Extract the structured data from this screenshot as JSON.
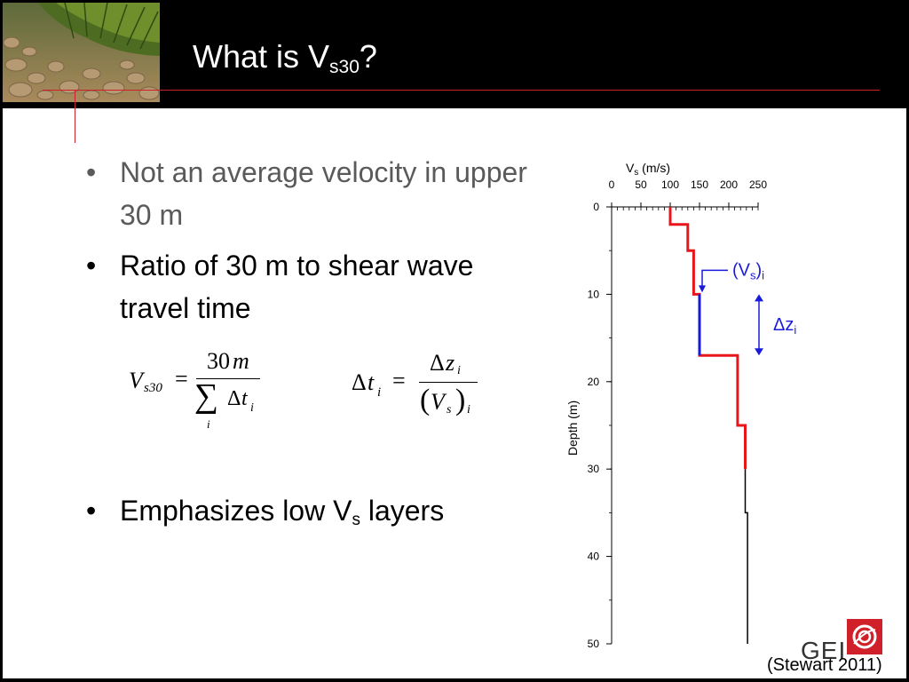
{
  "slide": {
    "title": "What is V",
    "title_sub": "s30",
    "title_end": "?"
  },
  "bullets": [
    {
      "text": "Not an average velocity in upper 30 m",
      "style": "gray"
    },
    {
      "text": "Ratio of 30 m to shear wave travel time",
      "style": "normal"
    },
    {
      "text": "Emphasizes low V",
      "sub": "s",
      "end": " layers",
      "style": "normal"
    }
  ],
  "formula1": {
    "lhs_main": "V",
    "lhs_sub": "s30",
    "equals": "=",
    "numerator_num": "30",
    "numerator_var": "m",
    "sum_symbol": "∑",
    "sum_index": "i",
    "denominator_delta": "Δ",
    "denominator_var": "t",
    "denominator_sub": "i"
  },
  "formula2": {
    "lhs_delta": "Δ",
    "lhs_var": "t",
    "lhs_sub": "i",
    "equals": "=",
    "num_delta": "Δ",
    "num_var": "z",
    "num_sub": "i",
    "den_open": "(",
    "den_var": "V",
    "den_sub": "s",
    "den_close": ")",
    "den_outer_sub": "i"
  },
  "chart_data": {
    "type": "line",
    "title": "",
    "xlabel": "V",
    "xlabel_sub": "s",
    "xlabel_unit": " (m/s)",
    "ylabel": "Depth (m)",
    "xlim": [
      0,
      250
    ],
    "ylim": [
      0,
      50
    ],
    "x_ticks": [
      "0",
      "50",
      "100",
      "150",
      "200",
      "250"
    ],
    "y_ticks": [
      "0",
      "10",
      "20",
      "30",
      "40",
      "50"
    ],
    "profile_upper_30m": {
      "color": "#e8161b",
      "points": [
        [
          100,
          0
        ],
        [
          100,
          2
        ],
        [
          130,
          2
        ],
        [
          130,
          5
        ],
        [
          140,
          5
        ],
        [
          140,
          10
        ],
        [
          150,
          10
        ],
        [
          150,
          17
        ],
        [
          215,
          17
        ],
        [
          215,
          25
        ],
        [
          228,
          25
        ],
        [
          228,
          30
        ]
      ]
    },
    "highlight_layer": {
      "color": "#1a1adc",
      "points": [
        [
          150,
          10
        ],
        [
          150,
          17
        ]
      ]
    },
    "profile_below_30m": {
      "color": "#000000",
      "points": [
        [
          228,
          30
        ],
        [
          228,
          35
        ],
        [
          232,
          35
        ],
        [
          232,
          50
        ]
      ]
    },
    "annotation_vs": {
      "open": "(V",
      "sub": "s",
      "close": ")",
      "outer_sub": "i"
    },
    "annotation_dz": {
      "delta": "Δ",
      "var": "z",
      "sub": "i"
    },
    "annotation_color": "#1a1adc"
  },
  "footer": {
    "source": "(Stewart 2011)",
    "logo_text": "GEI",
    "logo_icon": "gei-red-square-logo"
  }
}
